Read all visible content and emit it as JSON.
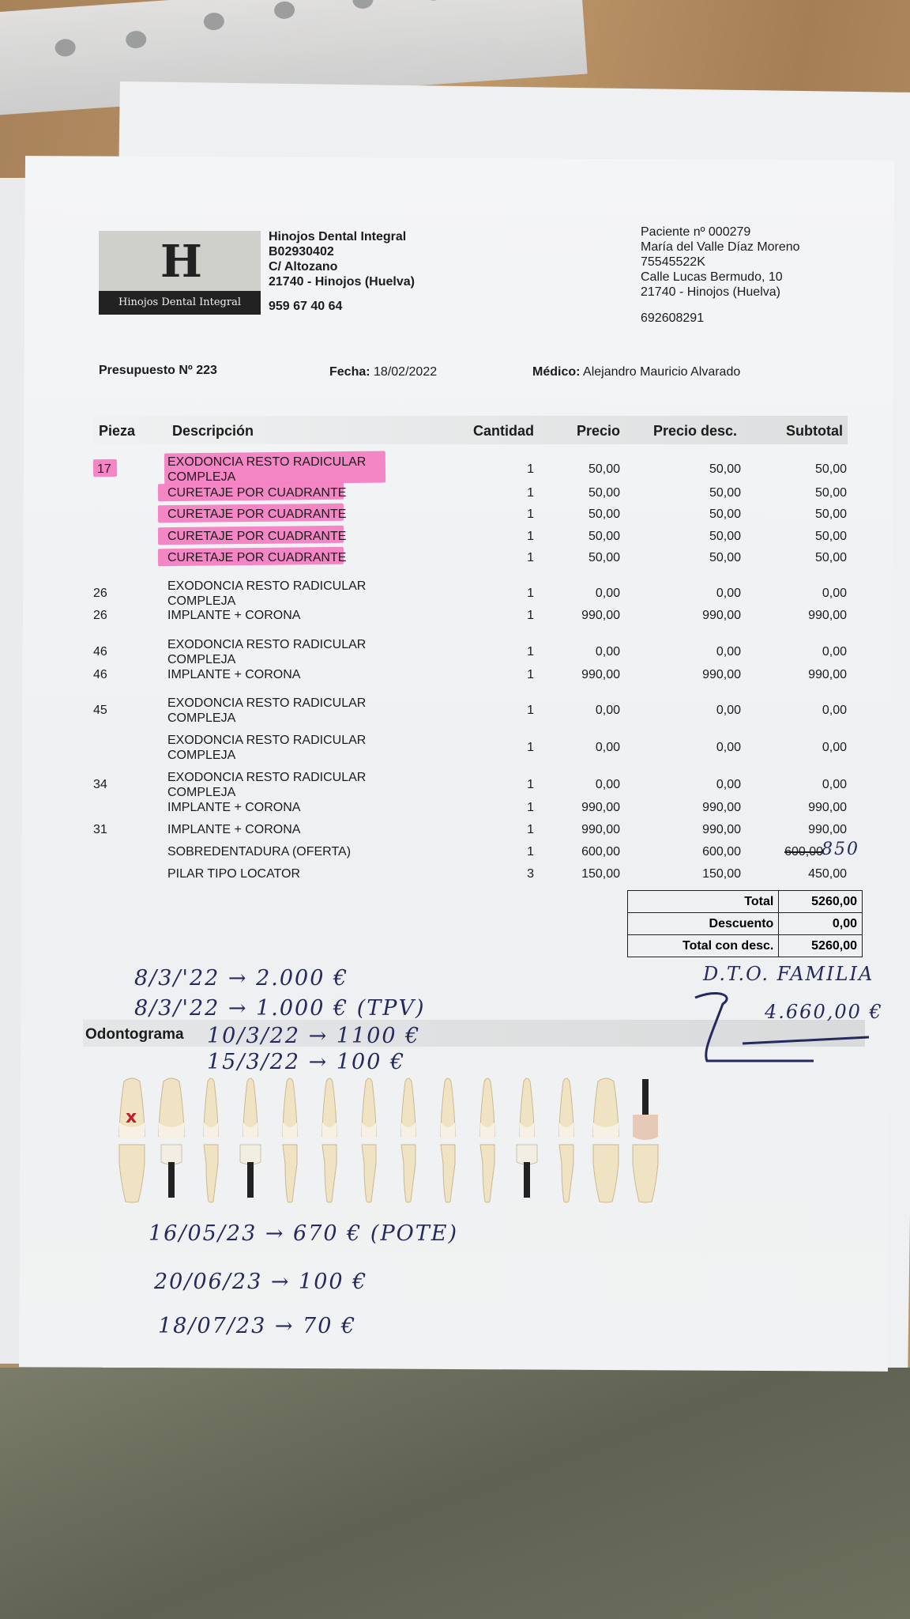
{
  "clinic": {
    "logo_text": "Hinojos Dental Integral",
    "name": "Hinojos Dental Integral",
    "cif": "B02930402",
    "street": "C/ Altozano",
    "city": "21740 - Hinojos (Huelva)",
    "phone": "959 67 40 64"
  },
  "patient": {
    "number": "Paciente nº 000279",
    "name": "María del Valle Díaz Moreno",
    "id": "75545522K",
    "street": "Calle Lucas Bermudo, 10",
    "city": "21740 - Hinojos (Huelva)",
    "phone": "692608291"
  },
  "meta": {
    "budget": "Presupuesto Nº 223",
    "date_label": "Fecha:",
    "date": "18/02/2022",
    "doctor_label": "Médico:",
    "doctor": "Alejandro Mauricio Alvarado"
  },
  "table": {
    "headers": [
      "Pieza",
      "Descripción",
      "Cantidad",
      "Precio",
      "Precio desc.",
      "Subtotal"
    ],
    "rows": [
      {
        "pieza": "17",
        "desc": [
          "EXODONCIA RESTO RADICULAR",
          "COMPLEJA"
        ],
        "cantidad": "1",
        "precio": "50,00",
        "precio_desc": "50,00",
        "subtotal": "50,00",
        "highlighted": true
      },
      {
        "pieza": "",
        "desc": [
          "CURETAJE POR CUADRANTE"
        ],
        "cantidad": "1",
        "precio": "50,00",
        "precio_desc": "50,00",
        "subtotal": "50,00",
        "highlighted": true
      },
      {
        "pieza": "",
        "desc": [
          "CURETAJE POR CUADRANTE"
        ],
        "cantidad": "1",
        "precio": "50,00",
        "precio_desc": "50,00",
        "subtotal": "50,00",
        "highlighted": true
      },
      {
        "pieza": "",
        "desc": [
          "CURETAJE POR CUADRANTE"
        ],
        "cantidad": "1",
        "precio": "50,00",
        "precio_desc": "50,00",
        "subtotal": "50,00",
        "highlighted": true
      },
      {
        "pieza": "",
        "desc": [
          "CURETAJE POR CUADRANTE"
        ],
        "cantidad": "1",
        "precio": "50,00",
        "precio_desc": "50,00",
        "subtotal": "50,00",
        "highlighted": true
      },
      {
        "pieza": "26",
        "desc": [
          "EXODONCIA RESTO RADICULAR",
          "COMPLEJA"
        ],
        "cantidad": "1",
        "precio": "0,00",
        "precio_desc": "0,00",
        "subtotal": "0,00"
      },
      {
        "pieza": "26",
        "desc": [
          "IMPLANTE + CORONA"
        ],
        "cantidad": "1",
        "precio": "990,00",
        "precio_desc": "990,00",
        "subtotal": "990,00"
      },
      {
        "pieza": "46",
        "desc": [
          "EXODONCIA RESTO RADICULAR",
          "COMPLEJA"
        ],
        "cantidad": "1",
        "precio": "0,00",
        "precio_desc": "0,00",
        "subtotal": "0,00"
      },
      {
        "pieza": "46",
        "desc": [
          "IMPLANTE + CORONA"
        ],
        "cantidad": "1",
        "precio": "990,00",
        "precio_desc": "990,00",
        "subtotal": "990,00"
      },
      {
        "pieza": "45",
        "desc": [
          "EXODONCIA RESTO RADICULAR",
          "COMPLEJA"
        ],
        "cantidad": "1",
        "precio": "0,00",
        "precio_desc": "0,00",
        "subtotal": "0,00"
      },
      {
        "pieza": "",
        "desc": [
          "EXODONCIA RESTO RADICULAR",
          "COMPLEJA"
        ],
        "cantidad": "1",
        "precio": "0,00",
        "precio_desc": "0,00",
        "subtotal": "0,00"
      },
      {
        "pieza": "34",
        "desc": [
          "EXODONCIA RESTO RADICULAR",
          "COMPLEJA"
        ],
        "cantidad": "1",
        "precio": "0,00",
        "precio_desc": "0,00",
        "subtotal": "0,00"
      },
      {
        "pieza": "",
        "desc": [
          "IMPLANTE + CORONA"
        ],
        "cantidad": "1",
        "precio": "990,00",
        "precio_desc": "990,00",
        "subtotal": "990,00"
      },
      {
        "pieza": "31",
        "desc": [
          "IMPLANTE + CORONA"
        ],
        "cantidad": "1",
        "precio": "990,00",
        "precio_desc": "990,00",
        "subtotal": "990,00"
      },
      {
        "pieza": "",
        "desc": [
          "SOBREDENTADURA (OFERTA)"
        ],
        "cantidad": "1",
        "precio": "600,00",
        "precio_desc": "600,00",
        "subtotal": "600,00",
        "struck": true,
        "handwritten_subtotal": "850"
      },
      {
        "pieza": "",
        "desc": [
          "PILAR TIPO LOCATOR"
        ],
        "cantidad": "3",
        "precio": "150,00",
        "precio_desc": "150,00",
        "subtotal": "450,00"
      }
    ]
  },
  "totals": [
    {
      "label": "Total",
      "value": "5260,00"
    },
    {
      "label": "Descuento",
      "value": "0,00"
    },
    {
      "label": "Total con desc.",
      "value": "5260,00"
    }
  ],
  "odontograma": {
    "label": "Odontograma"
  },
  "handwritten": {
    "payments_top": [
      "8/3/'22 → 2.000 €",
      "8/3/'22 → 1.000 € (TPV)",
      "10/3/22 → 1100 €",
      "15/3/22 → 100 €"
    ],
    "discount_note": "D.T.O. FAMILIA",
    "discount_total": "4.660,00 €",
    "payments_bottom": [
      "16/05/23 → 670 € (POTE)",
      "20/06/23 → 100 €",
      "18/07/23 → 70 €"
    ]
  },
  "colors": {
    "highlighter": "#f47fc3",
    "ink": "#252a5e"
  }
}
